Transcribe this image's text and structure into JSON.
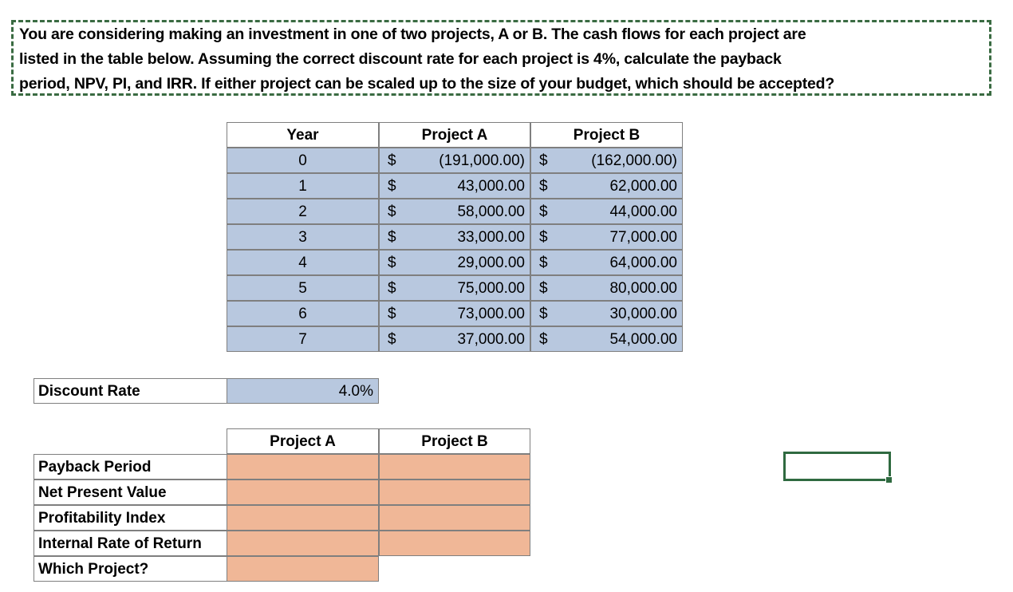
{
  "prompt": {
    "line1": "You are considering making an investment in one of two projects, A or B.  The cash flows for each project are",
    "line2": "listed in the table below.  Assuming the correct discount rate for each project is 4%, calculate the payback",
    "line3": "period, NPV, PI, and IRR.  If either project can be scaled up to the size of your budget, which should be accepted?"
  },
  "cashflow_table": {
    "headers": {
      "year": "Year",
      "project_a": "Project A",
      "project_b": "Project B"
    },
    "currency_symbol": "$",
    "rows": [
      {
        "year": "0",
        "a": "(191,000.00)",
        "b": "(162,000.00)"
      },
      {
        "year": "1",
        "a": "43,000.00",
        "b": "62,000.00"
      },
      {
        "year": "2",
        "a": "58,000.00",
        "b": "44,000.00"
      },
      {
        "year": "3",
        "a": "33,000.00",
        "b": "77,000.00"
      },
      {
        "year": "4",
        "a": "29,000.00",
        "b": "64,000.00"
      },
      {
        "year": "5",
        "a": "75,000.00",
        "b": "80,000.00"
      },
      {
        "year": "6",
        "a": "73,000.00",
        "b": "30,000.00"
      },
      {
        "year": "7",
        "a": "37,000.00",
        "b": "54,000.00"
      }
    ]
  },
  "discount": {
    "label": "Discount Rate",
    "value": "4.0%"
  },
  "results": {
    "headers": {
      "project_a": "Project A",
      "project_b": "Project B"
    },
    "rows": [
      {
        "label": "Payback  Period"
      },
      {
        "label": "Net Present Value"
      },
      {
        "label": "Profitability Index"
      },
      {
        "label": "Internal Rate of Return"
      },
      {
        "label": "Which Project?"
      }
    ]
  },
  "colors": {
    "input_blue": "#b8c8df",
    "answer_peach": "#f0b797",
    "selection_green": "#2f6a40"
  }
}
